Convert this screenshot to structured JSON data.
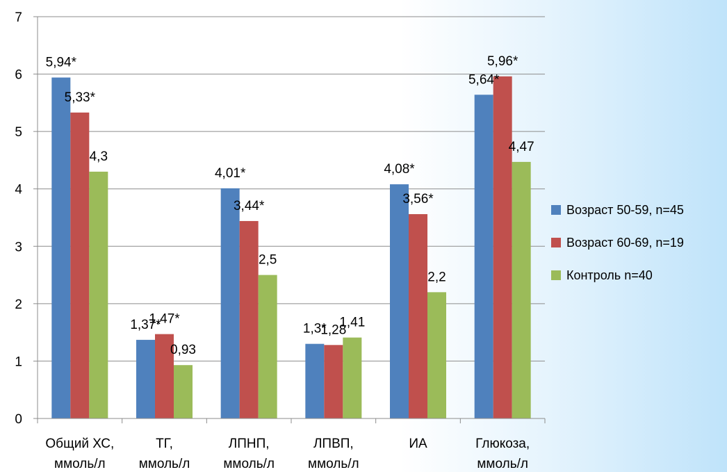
{
  "chart_data": {
    "type": "bar",
    "categories": [
      [
        "Общий ХС,",
        "ммоль/л"
      ],
      [
        "ТГ,",
        "ммоль/л"
      ],
      [
        "ЛПНП,",
        "ммоль/л"
      ],
      [
        "ЛПВП,",
        "ммоль/л"
      ],
      [
        "ИА",
        ""
      ],
      [
        "Глюкоза,",
        "ммоль/л"
      ]
    ],
    "series": [
      {
        "name": "Возраст 50-59,  n=45",
        "color": "#4f81bd",
        "values": [
          5.94,
          1.37,
          4.01,
          1.3,
          4.08,
          5.64
        ],
        "labels": [
          "5,94*",
          "1,37*",
          "4,01*",
          "1,3*",
          "4,08*",
          "5,64*"
        ]
      },
      {
        "name": "Возраст 60-69,  n=19",
        "color": "#c0504d",
        "values": [
          5.33,
          1.47,
          3.44,
          1.28,
          3.56,
          5.96
        ],
        "labels": [
          "5,33*",
          "1,47*",
          "3,44*",
          "1,28",
          "3,56*",
          "5,96*"
        ]
      },
      {
        "name": "Контроль n=40",
        "color": "#9bbb59",
        "values": [
          4.3,
          0.93,
          2.5,
          1.41,
          2.2,
          4.47
        ],
        "labels": [
          "4,3",
          "0,93",
          "2,5",
          "1,41",
          "2,2",
          "4,47"
        ]
      }
    ],
    "ylim": [
      0,
      7
    ],
    "yticks": [
      0,
      1,
      2,
      3,
      4,
      5,
      6,
      7
    ],
    "grid": true,
    "legend": "right"
  }
}
